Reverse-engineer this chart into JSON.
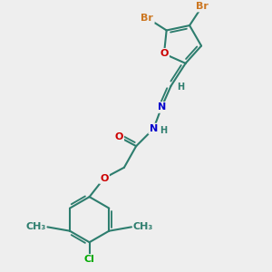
{
  "bg_color": "#eeeeee",
  "bond_color": "#2d7d6e",
  "bond_width": 1.5,
  "atom_colors": {
    "Br": "#cc7722",
    "O": "#cc0000",
    "N": "#0000cc",
    "Cl": "#00aa00",
    "H": "#2d7d6e",
    "C": "#2d7d6e"
  },
  "font_size_atom": 8,
  "font_size_small": 7,
  "figsize": [
    3.0,
    3.0
  ],
  "dpi": 100
}
